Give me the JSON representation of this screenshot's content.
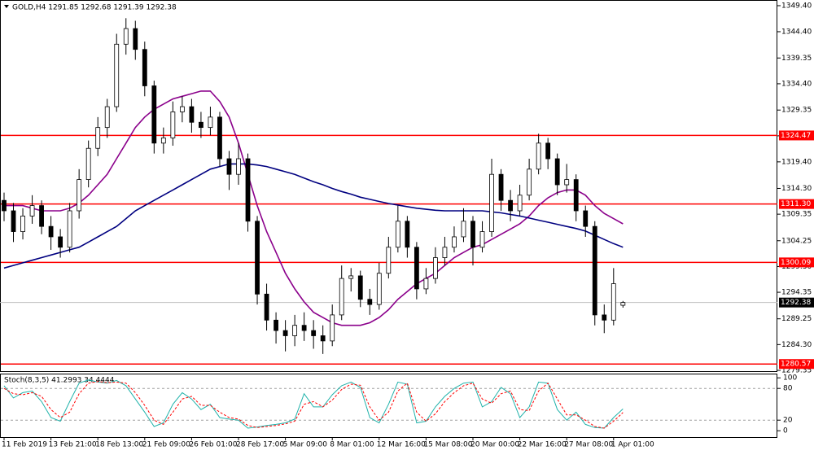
{
  "chart_data": [
    {
      "type": "candlestick",
      "title": "GOLD,H4  1291.85 1292.68 1291.39 1292.38",
      "categories": [
        "11 Feb 2019",
        null,
        null,
        null,
        null,
        "13 Feb 21:00",
        null,
        null,
        null,
        null,
        "18 Feb 13:00",
        null,
        null,
        null,
        null,
        "21 Feb 09:00",
        null,
        null,
        null,
        null,
        "26 Feb 01:00",
        null,
        null,
        null,
        null,
        "28 Feb 17:00",
        null,
        null,
        null,
        null,
        "5 Mar 09:00",
        null,
        null,
        null,
        null,
        "8 Mar 01:00",
        null,
        null,
        null,
        null,
        "12 Mar 16:00",
        null,
        null,
        null,
        null,
        "15 Mar 08:00",
        null,
        null,
        null,
        null,
        "20 Mar 00:00",
        null,
        null,
        null,
        null,
        "22 Mar 16:00",
        null,
        null,
        null,
        null,
        "27 Mar 08:00",
        null,
        null,
        null,
        null,
        "1 Apr 01:00",
        null
      ],
      "open": [
        1312,
        1310,
        1306,
        1309,
        1311,
        1307,
        1305,
        1303,
        1310,
        1316,
        1322,
        1326,
        1330,
        1342,
        1345,
        1341,
        1334,
        1323,
        1324,
        1329,
        1330,
        1327,
        1326,
        1328,
        1320,
        1317,
        1320,
        1308,
        1294,
        1289,
        1287,
        1286,
        1288,
        1287,
        1286,
        1285,
        1290,
        1297,
        1297.5,
        1293,
        1292,
        1298,
        1303,
        1308,
        1303,
        1295,
        1297,
        1301,
        1303,
        1305,
        1308,
        1303,
        1306,
        1317,
        1312,
        1310,
        1313,
        1318,
        1323,
        1320,
        1315,
        1316,
        1310,
        1307,
        1290,
        1289,
        1291.85
      ],
      "high": [
        1313.5,
        1311.5,
        1310.5,
        1313,
        1312,
        1309,
        1306.5,
        1311.5,
        1318,
        1323.5,
        1328,
        1331.5,
        1344,
        1347,
        1346.5,
        1342.5,
        1335,
        1326,
        1331,
        1332,
        1331.5,
        1329,
        1330,
        1329,
        1321.5,
        1323,
        1321,
        1309,
        1296,
        1290.5,
        1289,
        1290,
        1290.5,
        1289,
        1288,
        1292,
        1299.5,
        1299,
        1298.5,
        1295,
        1300,
        1305,
        1311,
        1309,
        1304,
        1299,
        1303,
        1305,
        1307,
        1310.5,
        1309,
        1308,
        1320,
        1318,
        1314,
        1315,
        1320,
        1324.8,
        1324,
        1321,
        1319,
        1317,
        1311,
        1308,
        1292,
        1299,
        1292.68
      ],
      "low": [
        1308,
        1304,
        1304.5,
        1307.5,
        1305.5,
        1302.5,
        1301,
        1302,
        1308.5,
        1314.5,
        1320.5,
        1324,
        1329,
        1340,
        1339,
        1332,
        1321,
        1321,
        1322.5,
        1327,
        1325,
        1324,
        1324.5,
        1318.5,
        1314,
        1315,
        1306,
        1292,
        1287,
        1284.5,
        1283,
        1284,
        1285,
        1283.5,
        1282.5,
        1284,
        1289,
        1294.5,
        1291.5,
        1290,
        1291,
        1297,
        1302,
        1301,
        1293,
        1294,
        1296,
        1299.5,
        1302,
        1304,
        1299.5,
        1302,
        1305,
        1310,
        1308,
        1309,
        1312,
        1317,
        1318,
        1313,
        1313.5,
        1308,
        1305,
        1288,
        1286.5,
        1288,
        1291.39
      ],
      "close": [
        1310,
        1306,
        1309,
        1311,
        1307,
        1305,
        1303,
        1310,
        1316,
        1322,
        1326,
        1330,
        1342,
        1345,
        1341,
        1334,
        1323,
        1324,
        1329,
        1330,
        1327,
        1326,
        1328,
        1320,
        1317,
        1320,
        1308,
        1294,
        1289,
        1287,
        1286,
        1288,
        1287,
        1286,
        1285,
        1290,
        1297,
        1297.5,
        1293,
        1292,
        1298,
        1303,
        1308,
        1303,
        1295,
        1297,
        1301,
        1303,
        1305,
        1308,
        1303,
        1306,
        1317,
        1312,
        1310,
        1313,
        1318,
        1323,
        1320,
        1315,
        1316,
        1310,
        1307,
        1290,
        1289,
        1296,
        1292.38
      ],
      "lines": [
        {
          "color": "#8b008b",
          "values": [
            1311,
            1311,
            1311,
            1310.5,
            1310,
            1310,
            1310,
            1310.5,
            1311.5,
            1313,
            1315,
            1317,
            1320,
            1323,
            1326,
            1328,
            1329.5,
            1330.5,
            1331.5,
            1332,
            1332.5,
            1333,
            1333,
            1331,
            1328,
            1323,
            1317,
            1311,
            1306,
            1302,
            1298,
            1295,
            1292.5,
            1290.5,
            1289.5,
            1288.5,
            1288,
            1288,
            1288,
            1288.5,
            1289.5,
            1291,
            1293,
            1294.5,
            1296,
            1297,
            1298,
            1299.5,
            1301,
            1302,
            1303,
            1303.5,
            1304.5,
            1305.5,
            1306.5,
            1307.5,
            1309,
            1311,
            1312.5,
            1313.5,
            1314,
            1314,
            1313,
            1311,
            1309.5,
            1308.5,
            1307.5
          ]
        },
        {
          "color": "#000080",
          "values": [
            1299,
            1299.5,
            1300,
            1300.5,
            1301,
            1301.5,
            1302,
            1302.5,
            1303,
            1304,
            1305,
            1306,
            1307,
            1308.5,
            1310,
            1311,
            1312,
            1313,
            1314,
            1315,
            1316,
            1317,
            1318,
            1318.5,
            1319,
            1319,
            1319,
            1318.8,
            1318.5,
            1318,
            1317.5,
            1317,
            1316.3,
            1315.6,
            1315,
            1314.3,
            1313.7,
            1313.2,
            1312.6,
            1312.2,
            1311.8,
            1311.4,
            1311.1,
            1310.8,
            1310.5,
            1310.3,
            1310.1,
            1310,
            1310,
            1310,
            1310,
            1310,
            1309.8,
            1309.6,
            1309.3,
            1309,
            1308.6,
            1308.2,
            1307.8,
            1307.4,
            1307,
            1306.6,
            1306.1,
            1305.3,
            1304.5,
            1303.7,
            1303
          ]
        }
      ],
      "levels": [
        {
          "value": 1324.47,
          "color": "#ff0000"
        },
        {
          "value": 1311.3,
          "label": "1311.30",
          "color": "#ff0000"
        },
        {
          "value": 1300.09,
          "color": "#ff0000"
        },
        {
          "value": 1280.57,
          "color": "#ff0000"
        }
      ],
      "last": 1292.38,
      "ylim": [
        1279.04,
        1350.49
      ],
      "yticks": [
        {
          "value": 1349.4,
          "label": "1349.40"
        },
        {
          "value": 1344.4,
          "label": "1344.40"
        },
        {
          "value": 1339.35,
          "label": "1339.35"
        },
        {
          "value": 1334.4,
          "label": "1334.40"
        },
        {
          "value": 1329.35,
          "label": "1329.35"
        },
        {
          "value": 1324.4,
          "label": "1324.40"
        },
        {
          "value": 1319.4,
          "label": "1319.40"
        },
        {
          "value": 1314.3,
          "label": "1314.30"
        },
        {
          "value": 1309.35,
          "label": "1309.35"
        },
        {
          "value": 1304.25,
          "label": "1304.25"
        },
        {
          "value": 1299.3,
          "label": "1299.30"
        },
        {
          "value": 1294.35,
          "label": "1294.35"
        },
        {
          "value": 1289.25,
          "label": "1289.25"
        },
        {
          "value": 1284.3,
          "label": "1284.30"
        },
        {
          "value": 1279.35,
          "label": "1279.35"
        }
      ]
    },
    {
      "type": "line",
      "title": "Stoch(8,3,5) 41.2993 34.4444",
      "series": [
        {
          "color": "#20b2aa",
          "values": [
            85,
            62,
            72,
            75,
            55,
            25,
            18,
            55,
            90,
            96,
            92,
            90,
            95,
            85,
            60,
            35,
            8,
            15,
            50,
            72,
            60,
            40,
            50,
            25,
            22,
            20,
            5,
            7,
            10,
            12,
            15,
            22,
            70,
            45,
            45,
            68,
            85,
            92,
            82,
            25,
            15,
            50,
            92,
            88,
            15,
            18,
            45,
            65,
            80,
            90,
            92,
            45,
            55,
            82,
            70,
            25,
            45,
            92,
            90,
            40,
            20,
            35,
            12,
            6,
            5,
            25,
            41.2993
          ]
        },
        {
          "color": "#ff0000",
          "dashed": true,
          "values": [
            80,
            70,
            68,
            72,
            65,
            40,
            25,
            35,
            70,
            90,
            93,
            91,
            92,
            90,
            72,
            48,
            20,
            12,
            35,
            60,
            65,
            48,
            48,
            35,
            25,
            22,
            10,
            6,
            8,
            10,
            13,
            18,
            50,
            55,
            45,
            58,
            78,
            88,
            86,
            45,
            20,
            35,
            75,
            90,
            35,
            18,
            32,
            55,
            72,
            85,
            90,
            60,
            52,
            70,
            75,
            40,
            38,
            75,
            90,
            60,
            30,
            30,
            20,
            8,
            5,
            18,
            34.4444
          ]
        }
      ],
      "levels": [
        20,
        80
      ],
      "ylim": [
        -12,
        108
      ],
      "yticks": [
        0,
        20,
        80,
        100
      ]
    }
  ]
}
